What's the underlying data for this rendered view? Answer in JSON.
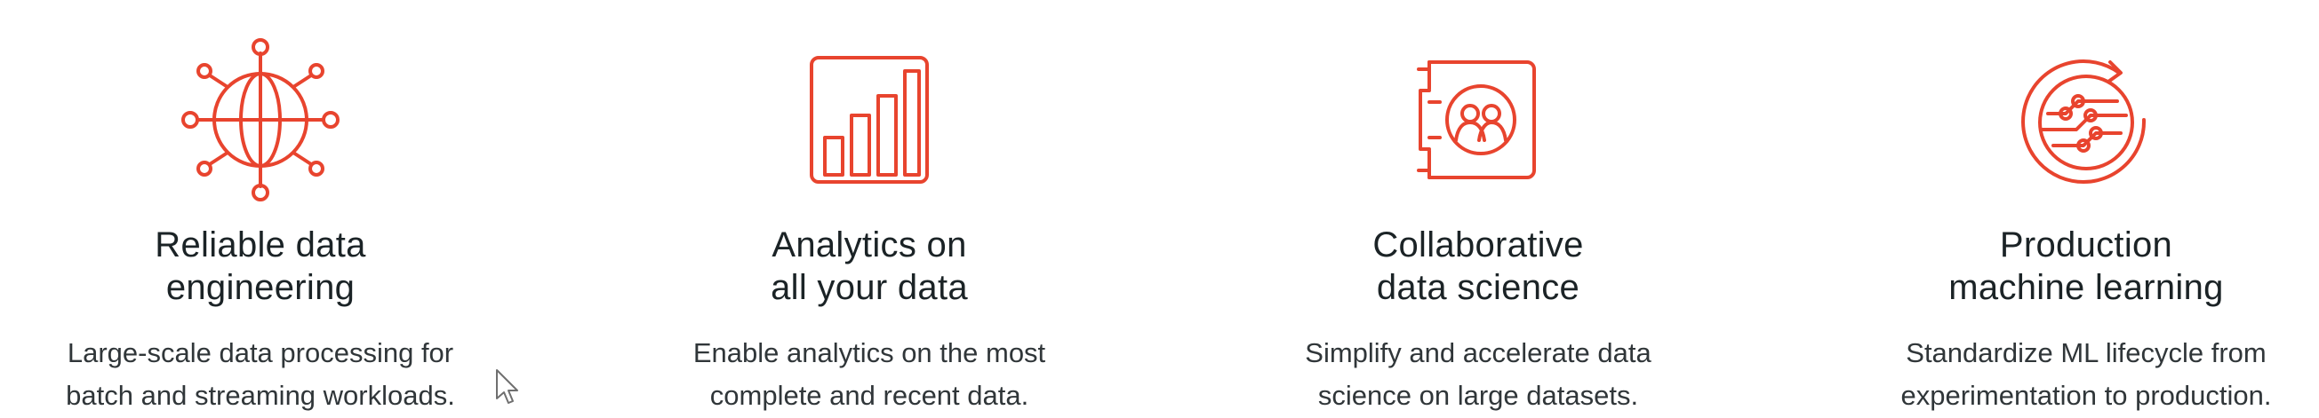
{
  "accent_color": "#e8442e",
  "features": [
    {
      "icon": "globe-network-icon",
      "title_lines": [
        "Reliable data",
        "engineering"
      ],
      "desc_lines": [
        "Large-scale data processing for",
        "batch and streaming workloads."
      ]
    },
    {
      "icon": "bar-chart-icon",
      "title_lines": [
        "Analytics on",
        "all your data"
      ],
      "desc_lines": [
        "Enable analytics on the most",
        "complete and recent data."
      ]
    },
    {
      "icon": "collaboration-notebook-icon",
      "title_lines": [
        "Collaborative",
        "data science"
      ],
      "desc_lines": [
        "Simplify and accelerate data",
        "science on large datasets."
      ]
    },
    {
      "icon": "ml-lifecycle-icon",
      "title_lines": [
        "Production",
        "machine learning"
      ],
      "desc_lines": [
        "Standardize ML lifecycle from",
        "experimentation to production."
      ]
    }
  ]
}
